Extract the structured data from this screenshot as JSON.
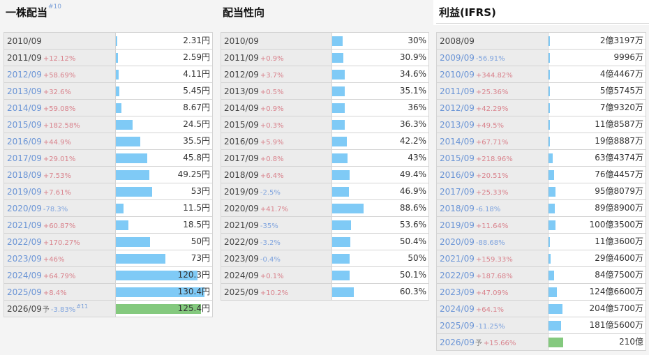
{
  "panels": [
    {
      "title": "一株配当",
      "title_sup": "#10",
      "rows": [
        {
          "year": "2010/09",
          "change": "",
          "dir": "",
          "link": false,
          "forecast": false,
          "yo": "",
          "note": "",
          "value_text": "2.31円",
          "value": 2.31
        },
        {
          "year": "2011/09",
          "change": "+12.12%",
          "dir": "up",
          "link": false,
          "forecast": false,
          "yo": "",
          "note": "",
          "value_text": "2.59円",
          "value": 2.59
        },
        {
          "year": "2012/09",
          "change": "+58.69%",
          "dir": "up",
          "link": true,
          "forecast": false,
          "yo": "",
          "note": "",
          "value_text": "4.11円",
          "value": 4.11
        },
        {
          "year": "2013/09",
          "change": "+32.6%",
          "dir": "up",
          "link": true,
          "forecast": false,
          "yo": "",
          "note": "",
          "value_text": "5.45円",
          "value": 5.45
        },
        {
          "year": "2014/09",
          "change": "+59.08%",
          "dir": "up",
          "link": true,
          "forecast": false,
          "yo": "",
          "note": "",
          "value_text": "8.67円",
          "value": 8.67
        },
        {
          "year": "2015/09",
          "change": "+182.58%",
          "dir": "up",
          "link": true,
          "forecast": false,
          "yo": "",
          "note": "",
          "value_text": "24.5円",
          "value": 24.5
        },
        {
          "year": "2016/09",
          "change": "+44.9%",
          "dir": "up",
          "link": true,
          "forecast": false,
          "yo": "",
          "note": "",
          "value_text": "35.5円",
          "value": 35.5
        },
        {
          "year": "2017/09",
          "change": "+29.01%",
          "dir": "up",
          "link": true,
          "forecast": false,
          "yo": "",
          "note": "",
          "value_text": "45.8円",
          "value": 45.8
        },
        {
          "year": "2018/09",
          "change": "+7.53%",
          "dir": "up",
          "link": true,
          "forecast": false,
          "yo": "",
          "note": "",
          "value_text": "49.25円",
          "value": 49.25
        },
        {
          "year": "2019/09",
          "change": "+7.61%",
          "dir": "up",
          "link": true,
          "forecast": false,
          "yo": "",
          "note": "",
          "value_text": "53円",
          "value": 53
        },
        {
          "year": "2020/09",
          "change": "-78.3%",
          "dir": "down",
          "link": true,
          "forecast": false,
          "yo": "",
          "note": "",
          "value_text": "11.5円",
          "value": 11.5
        },
        {
          "year": "2021/09",
          "change": "+60.87%",
          "dir": "up",
          "link": true,
          "forecast": false,
          "yo": "",
          "note": "",
          "value_text": "18.5円",
          "value": 18.5
        },
        {
          "year": "2022/09",
          "change": "+170.27%",
          "dir": "up",
          "link": true,
          "forecast": false,
          "yo": "",
          "note": "",
          "value_text": "50円",
          "value": 50
        },
        {
          "year": "2023/09",
          "change": "+46%",
          "dir": "up",
          "link": true,
          "forecast": false,
          "yo": "",
          "note": "",
          "value_text": "73円",
          "value": 73
        },
        {
          "year": "2024/09",
          "change": "+64.79%",
          "dir": "up",
          "link": true,
          "forecast": false,
          "yo": "",
          "note": "",
          "value_text": "120.3円",
          "value": 120.3
        },
        {
          "year": "2025/09",
          "change": "+8.4%",
          "dir": "up",
          "link": true,
          "forecast": false,
          "yo": "",
          "note": "",
          "value_text": "130.4円",
          "value": 130.4
        },
        {
          "year": "2026/09",
          "change": "-3.83%",
          "dir": "down",
          "link": false,
          "forecast": true,
          "yo": "予",
          "note": "#11",
          "value_text": "125.4円",
          "value": 125.4
        }
      ]
    },
    {
      "title": "配当性向",
      "title_sup": "",
      "rows": [
        {
          "year": "2010/09",
          "change": "",
          "dir": "",
          "link": false,
          "forecast": false,
          "yo": "",
          "note": "",
          "value_text": "30%",
          "value": 30
        },
        {
          "year": "2011/09",
          "change": "+0.9%",
          "dir": "up",
          "link": false,
          "forecast": false,
          "yo": "",
          "note": "",
          "value_text": "30.9%",
          "value": 30.9
        },
        {
          "year": "2012/09",
          "change": "+3.7%",
          "dir": "up",
          "link": false,
          "forecast": false,
          "yo": "",
          "note": "",
          "value_text": "34.6%",
          "value": 34.6
        },
        {
          "year": "2013/09",
          "change": "+0.5%",
          "dir": "up",
          "link": false,
          "forecast": false,
          "yo": "",
          "note": "",
          "value_text": "35.1%",
          "value": 35.1
        },
        {
          "year": "2014/09",
          "change": "+0.9%",
          "dir": "up",
          "link": false,
          "forecast": false,
          "yo": "",
          "note": "",
          "value_text": "36%",
          "value": 36
        },
        {
          "year": "2015/09",
          "change": "+0.3%",
          "dir": "up",
          "link": false,
          "forecast": false,
          "yo": "",
          "note": "",
          "value_text": "36.3%",
          "value": 36.3
        },
        {
          "year": "2016/09",
          "change": "+5.9%",
          "dir": "up",
          "link": false,
          "forecast": false,
          "yo": "",
          "note": "",
          "value_text": "42.2%",
          "value": 42.2
        },
        {
          "year": "2017/09",
          "change": "+0.8%",
          "dir": "up",
          "link": false,
          "forecast": false,
          "yo": "",
          "note": "",
          "value_text": "43%",
          "value": 43
        },
        {
          "year": "2018/09",
          "change": "+6.4%",
          "dir": "up",
          "link": false,
          "forecast": false,
          "yo": "",
          "note": "",
          "value_text": "49.4%",
          "value": 49.4
        },
        {
          "year": "2019/09",
          "change": "-2.5%",
          "dir": "down",
          "link": false,
          "forecast": false,
          "yo": "",
          "note": "",
          "value_text": "46.9%",
          "value": 46.9
        },
        {
          "year": "2020/09",
          "change": "+41.7%",
          "dir": "up",
          "link": false,
          "forecast": false,
          "yo": "",
          "note": "",
          "value_text": "88.6%",
          "value": 88.6
        },
        {
          "year": "2021/09",
          "change": "-35%",
          "dir": "down",
          "link": false,
          "forecast": false,
          "yo": "",
          "note": "",
          "value_text": "53.6%",
          "value": 53.6
        },
        {
          "year": "2022/09",
          "change": "-3.2%",
          "dir": "down",
          "link": false,
          "forecast": false,
          "yo": "",
          "note": "",
          "value_text": "50.4%",
          "value": 50.4
        },
        {
          "year": "2023/09",
          "change": "-0.4%",
          "dir": "down",
          "link": false,
          "forecast": false,
          "yo": "",
          "note": "",
          "value_text": "50%",
          "value": 50
        },
        {
          "year": "2024/09",
          "change": "+0.1%",
          "dir": "up",
          "link": false,
          "forecast": false,
          "yo": "",
          "note": "",
          "value_text": "50.1%",
          "value": 50.1
        },
        {
          "year": "2025/09",
          "change": "+10.2%",
          "dir": "up",
          "link": false,
          "forecast": false,
          "yo": "",
          "note": "",
          "value_text": "60.3%",
          "value": 60.3
        }
      ]
    },
    {
      "title": "利益(IFRS)",
      "title_sup": "",
      "rows": [
        {
          "year": "2008/09",
          "change": "",
          "dir": "",
          "link": false,
          "forecast": false,
          "yo": "",
          "note": "",
          "value_text": "2億3197万",
          "value": 231970000
        },
        {
          "year": "2009/09",
          "change": "-56.91%",
          "dir": "down",
          "link": true,
          "forecast": false,
          "yo": "",
          "note": "",
          "value_text": "9996万",
          "value": 99960000
        },
        {
          "year": "2010/09",
          "change": "+344.82%",
          "dir": "up",
          "link": true,
          "forecast": false,
          "yo": "",
          "note": "",
          "value_text": "4億4467万",
          "value": 444670000
        },
        {
          "year": "2011/09",
          "change": "+25.36%",
          "dir": "up",
          "link": true,
          "forecast": false,
          "yo": "",
          "note": "",
          "value_text": "5億5745万",
          "value": 557450000
        },
        {
          "year": "2012/09",
          "change": "+42.29%",
          "dir": "up",
          "link": true,
          "forecast": false,
          "yo": "",
          "note": "",
          "value_text": "7億9320万",
          "value": 793200000
        },
        {
          "year": "2013/09",
          "change": "+49.5%",
          "dir": "up",
          "link": true,
          "forecast": false,
          "yo": "",
          "note": "",
          "value_text": "11億8587万",
          "value": 1185870000
        },
        {
          "year": "2014/09",
          "change": "+67.71%",
          "dir": "up",
          "link": true,
          "forecast": false,
          "yo": "",
          "note": "",
          "value_text": "19億8887万",
          "value": 1988870000
        },
        {
          "year": "2015/09",
          "change": "+218.96%",
          "dir": "up",
          "link": true,
          "forecast": false,
          "yo": "",
          "note": "",
          "value_text": "63億4374万",
          "value": 6343740000
        },
        {
          "year": "2016/09",
          "change": "+20.51%",
          "dir": "up",
          "link": true,
          "forecast": false,
          "yo": "",
          "note": "",
          "value_text": "76億4457万",
          "value": 7644570000
        },
        {
          "year": "2017/09",
          "change": "+25.33%",
          "dir": "up",
          "link": true,
          "forecast": false,
          "yo": "",
          "note": "",
          "value_text": "95億8079万",
          "value": 9580790000
        },
        {
          "year": "2018/09",
          "change": "-6.18%",
          "dir": "down",
          "link": true,
          "forecast": false,
          "yo": "",
          "note": "",
          "value_text": "89億8900万",
          "value": 8989000000
        },
        {
          "year": "2019/09",
          "change": "+11.64%",
          "dir": "up",
          "link": true,
          "forecast": false,
          "yo": "",
          "note": "",
          "value_text": "100億3500万",
          "value": 10035000000
        },
        {
          "year": "2020/09",
          "change": "-88.68%",
          "dir": "down",
          "link": true,
          "forecast": false,
          "yo": "",
          "note": "",
          "value_text": "11億3600万",
          "value": 1136000000
        },
        {
          "year": "2021/09",
          "change": "+159.33%",
          "dir": "up",
          "link": true,
          "forecast": false,
          "yo": "",
          "note": "",
          "value_text": "29億4600万",
          "value": 2946000000
        },
        {
          "year": "2022/09",
          "change": "+187.68%",
          "dir": "up",
          "link": true,
          "forecast": false,
          "yo": "",
          "note": "",
          "value_text": "84億7500万",
          "value": 8475000000
        },
        {
          "year": "2023/09",
          "change": "+47.09%",
          "dir": "up",
          "link": true,
          "forecast": false,
          "yo": "",
          "note": "",
          "value_text": "124億6600万",
          "value": 12466000000
        },
        {
          "year": "2024/09",
          "change": "+64.1%",
          "dir": "up",
          "link": true,
          "forecast": false,
          "yo": "",
          "note": "",
          "value_text": "204億5700万",
          "value": 20457000000
        },
        {
          "year": "2025/09",
          "change": "-11.25%",
          "dir": "down",
          "link": true,
          "forecast": false,
          "yo": "",
          "note": "",
          "value_text": "181億5600万",
          "value": 18156000000
        },
        {
          "year": "2026/09",
          "change": "+15.66%",
          "dir": "up",
          "link": true,
          "forecast": true,
          "yo": "予",
          "note": "",
          "value_text": "210億",
          "value": 21000000000
        }
      ]
    }
  ],
  "colors": {
    "bar": "#7fcaf6",
    "forecast_bar": "#84c97e",
    "increase": "#d9828c",
    "decrease": "#7ea3de",
    "year_link": "#6b95d6"
  }
}
